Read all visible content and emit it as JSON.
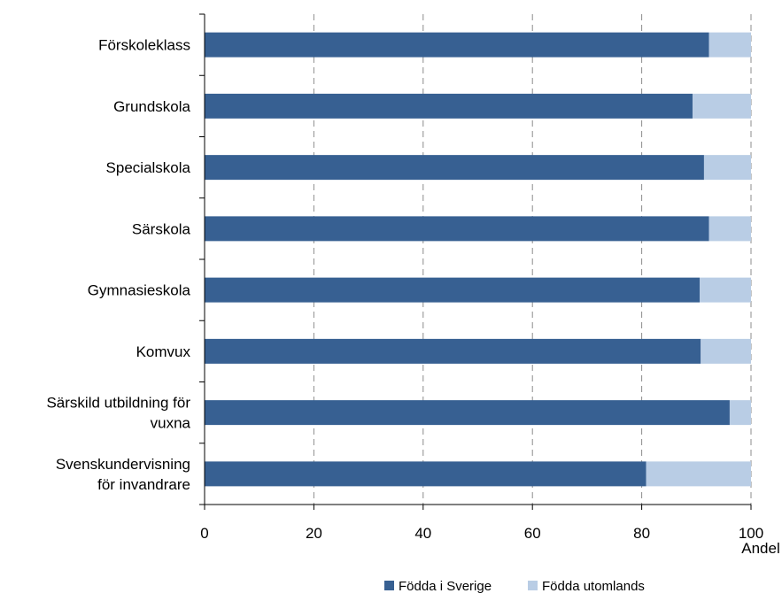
{
  "chart_data": {
    "type": "bar",
    "orientation": "horizontal",
    "stacked": true,
    "categories": [
      [
        "Förskoleklass"
      ],
      [
        "Grundskola"
      ],
      [
        "Specialskola"
      ],
      [
        "Särskola"
      ],
      [
        "Gymnasieskola"
      ],
      [
        "Komvux"
      ],
      [
        "Särskild utbildning för",
        "vuxna"
      ],
      [
        "Svenskundervisning",
        "för invandrare"
      ]
    ],
    "series": [
      {
        "name": "Födda i Sverige",
        "color": "#376092",
        "values": [
          92.3,
          89.3,
          91.4,
          92.3,
          90.6,
          90.8,
          96.1,
          80.8
        ]
      },
      {
        "name": "Födda utomlands",
        "color": "#B9CDE5",
        "values": [
          7.7,
          10.7,
          8.6,
          7.7,
          9.4,
          9.2,
          3.9,
          19.2
        ]
      }
    ],
    "x_ticks": [
      "0",
      "20",
      "40",
      "60",
      "80",
      "100"
    ],
    "xlim": [
      0,
      100
    ],
    "xlabel": "Andel",
    "grid": "vertical dashed",
    "legend_position": "bottom-right"
  }
}
